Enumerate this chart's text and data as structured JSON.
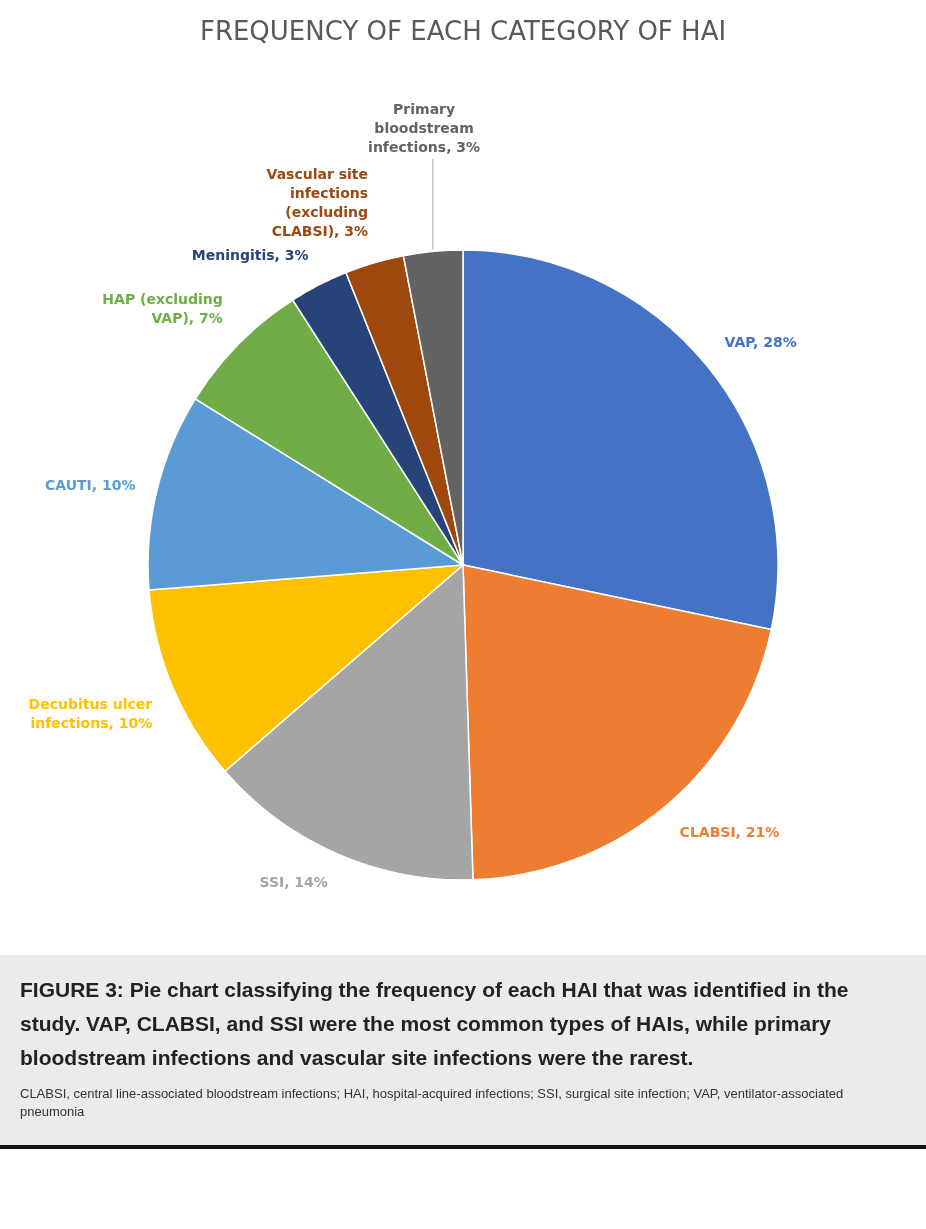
{
  "chart_data": {
    "type": "pie",
    "title": "FREQUENCY OF EACH CATEGORY OF HAI",
    "categories": [
      "VAP",
      "CLABSI",
      "SSI",
      "Decubitus ulcer infections",
      "CAUTI",
      "HAP (excluding VAP)",
      "Meningitis",
      "Vascular site infections (excluding CLABSI)",
      "Primary bloodstream infections"
    ],
    "values": [
      28,
      21,
      14,
      10,
      10,
      7,
      3,
      3,
      3
    ],
    "colors": [
      "#4472c4",
      "#ed7d31",
      "#a5a5a5",
      "#ffc000",
      "#5b9bd5",
      "#70ad47",
      "#264478",
      "#9e480e",
      "#636363"
    ],
    "value_labels": [
      "28%",
      "21%",
      "14%",
      "10%",
      "10%",
      "7%",
      "3%",
      "3%",
      "3%"
    ],
    "annotations": [
      "FIGURE 3: Pie chart classifying the frequency of each HAI that was identified in the study. VAP, CLABSI, and SSI were the most common types of HAIs, while primary bloodstream infections and vascular site infections were the rarest.",
      "CLABSI, central line-associated bloodstream infections; HAI, hospital-acquired infections; SSI, surgical site infection; VAP, ventilator-associated pneumonia"
    ]
  }
}
